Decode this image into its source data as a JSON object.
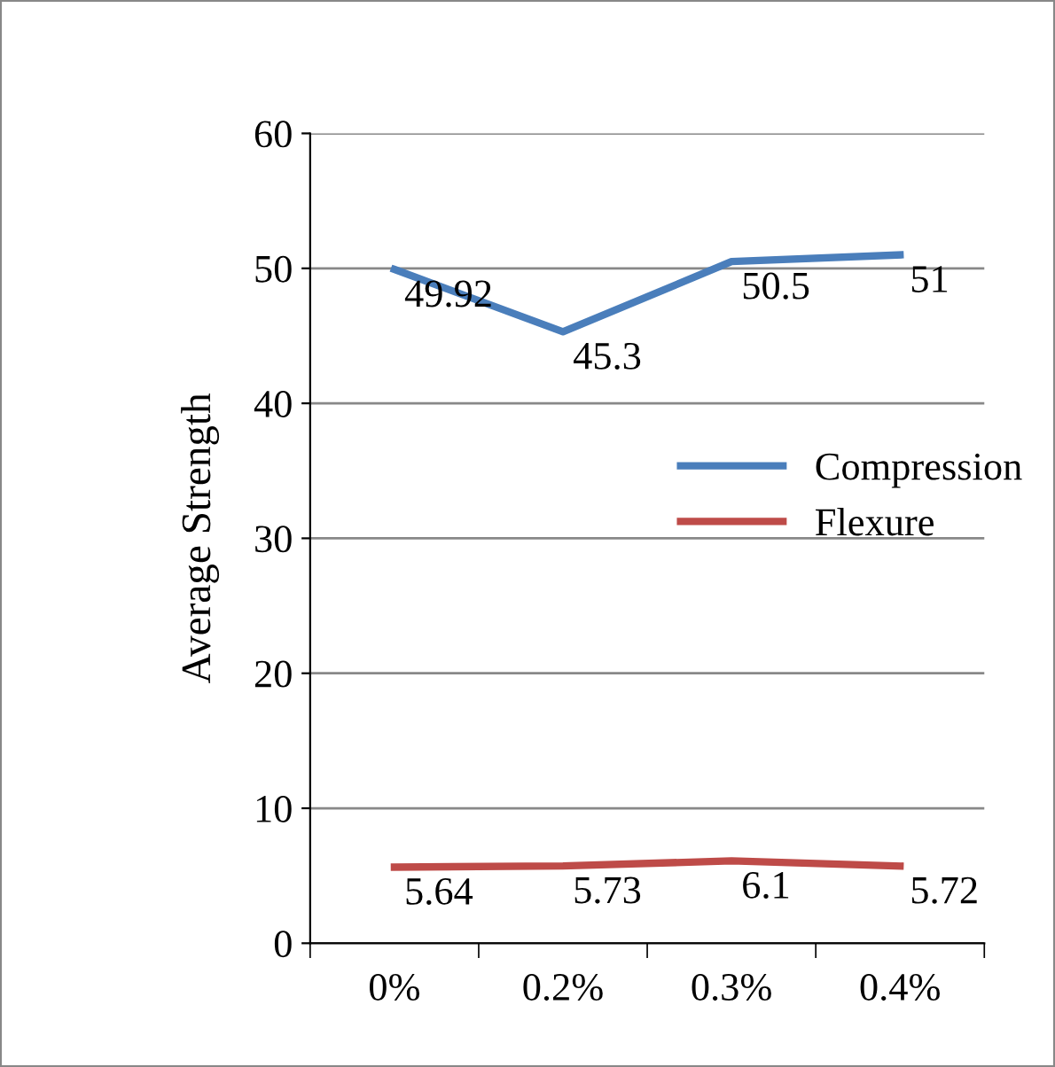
{
  "chart_data": {
    "type": "line",
    "ylabel": "Average Strength",
    "categories": [
      "0%",
      "0.2%",
      "0.3%",
      "0.4%"
    ],
    "series": [
      {
        "name": "Compression",
        "color": "#4a7ebb",
        "values": [
          49.92,
          45.3,
          50.5,
          51
        ]
      },
      {
        "name": "Flexure",
        "color": "#be4b48",
        "values": [
          5.64,
          5.73,
          6.1,
          5.72
        ]
      }
    ],
    "ylim": [
      0,
      60
    ],
    "yticks": [
      0,
      10,
      20,
      30,
      40,
      50,
      60
    ],
    "grid": "y",
    "legend": "right",
    "data_labels": true,
    "marker": "none",
    "line_style": "solid"
  }
}
